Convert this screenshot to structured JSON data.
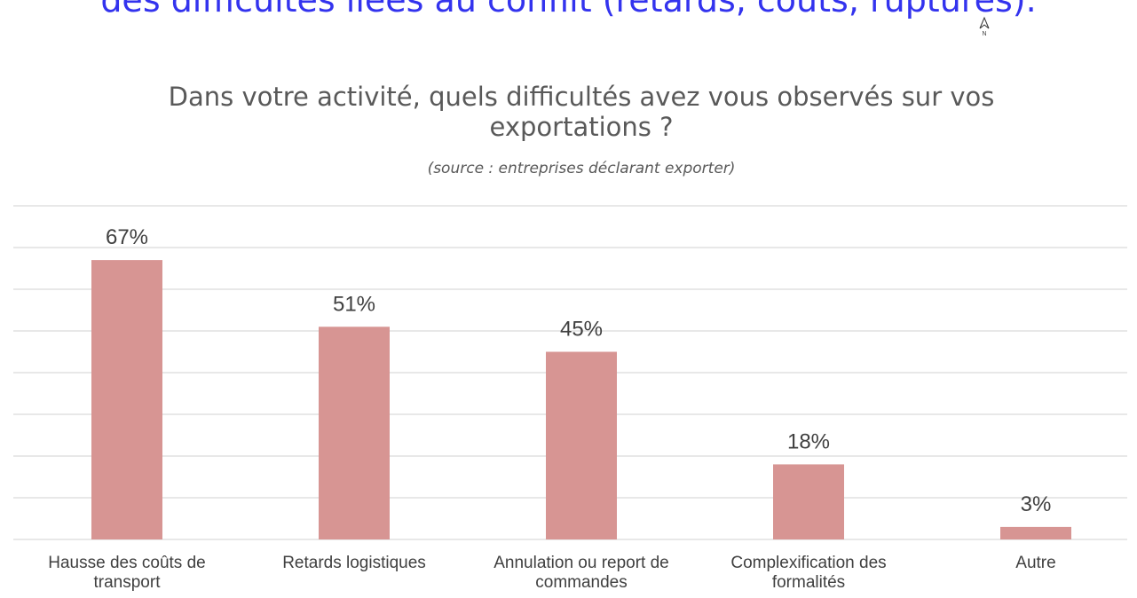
{
  "header": "des difficultés liées au conflit (retards, coûts, ruptures).",
  "compass": "N",
  "chart_data": {
    "type": "bar",
    "title": "Dans votre activité, quels difficultés avez vous observés sur vos exportations ?",
    "subtitle": "(source : entreprises déclarant exporter)",
    "categories": [
      "Hausse des coûts de transport",
      "Retards logistiques",
      "Annulation ou report de commandes",
      "Complexification des formalités",
      "Autre"
    ],
    "values": [
      67,
      51,
      45,
      18,
      3
    ],
    "value_labels": [
      "67%",
      "51%",
      "45%",
      "18%",
      "3%"
    ],
    "color": "#d79593",
    "ylim": [
      0,
      80
    ],
    "yticks": [
      0,
      10,
      20,
      30,
      40,
      50,
      60,
      70,
      80
    ],
    "grid": true
  }
}
